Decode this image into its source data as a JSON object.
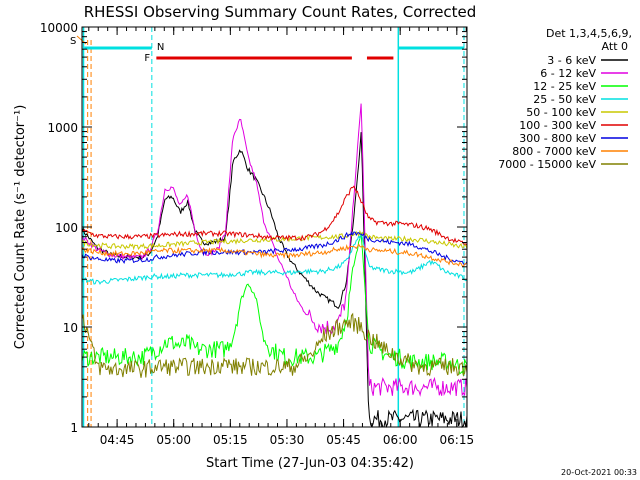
{
  "chart_data": {
    "type": "line",
    "title": "RHESSI Observing Summary Count Rates, Corrected",
    "xlabel": "Start Time (27-Jun-03 04:35:42)",
    "ylabel": "Corrected Count Rate (s⁻¹ detector⁻¹)",
    "y_scale": "log",
    "ylim": [
      1,
      10000
    ],
    "x_unit": "minutes after 04:35:42",
    "xlim": [
      0,
      102
    ],
    "x_ticks": [
      {
        "label": "04:45",
        "x": 9.3
      },
      {
        "label": "05:00",
        "x": 24.3
      },
      {
        "label": "05:15",
        "x": 39.3
      },
      {
        "label": "05:30",
        "x": 54.3
      },
      {
        "label": "05:45",
        "x": 69.3
      },
      {
        "label": "06:00",
        "x": 84.3
      },
      {
        "label": "06:15",
        "x": 99.3
      }
    ],
    "y_ticks": [
      {
        "label": "1",
        "y": 1
      },
      {
        "label": "10",
        "y": 10
      },
      {
        "label": "100",
        "y": 100
      },
      {
        "label": "1000",
        "y": 1000
      },
      {
        "label": "10000",
        "y": 10000
      }
    ],
    "legend_title": "Det 1,3,4,5,6,9,",
    "legend_subtitle": "Att 0",
    "legend_position": "right",
    "series": [
      {
        "name": "3 - 6 keV",
        "color": "#000000",
        "x": [
          0,
          4,
          8,
          12,
          16,
          18,
          20,
          22,
          24,
          26,
          28,
          30,
          32,
          34,
          36,
          38,
          40,
          42,
          44,
          46,
          48,
          50,
          52,
          54,
          56,
          58,
          60,
          62,
          64,
          66,
          68,
          70,
          72,
          74,
          76,
          78,
          80,
          82,
          84,
          86,
          88,
          90,
          92,
          94,
          96,
          98,
          100,
          102
        ],
        "values": [
          95,
          62,
          52,
          50,
          50,
          55,
          80,
          190,
          200,
          140,
          180,
          90,
          70,
          70,
          72,
          78,
          450,
          600,
          380,
          300,
          210,
          140,
          80,
          55,
          42,
          34,
          28,
          23,
          20,
          18,
          16,
          28,
          120,
          900,
          1.2,
          1.2,
          1.2,
          1.2,
          1.2,
          1.2,
          1.2,
          1.2,
          1.2,
          1.2,
          1.2,
          1.2,
          1.2,
          1.2
        ]
      },
      {
        "name": "6 - 12 keV",
        "color": "#e000e0",
        "x": [
          0,
          4,
          8,
          12,
          16,
          18,
          20,
          22,
          24,
          26,
          28,
          30,
          32,
          34,
          36,
          38,
          40,
          42,
          44,
          46,
          48,
          50,
          52,
          54,
          56,
          58,
          60,
          62,
          64,
          66,
          68,
          70,
          72,
          74,
          76,
          78,
          80,
          82,
          84,
          86,
          88,
          90,
          92,
          94,
          96,
          98,
          100,
          102
        ],
        "values": [
          80,
          60,
          52,
          50,
          50,
          60,
          90,
          240,
          250,
          160,
          210,
          90,
          55,
          55,
          60,
          90,
          800,
          1200,
          500,
          300,
          120,
          75,
          48,
          34,
          22,
          16,
          13,
          11,
          10,
          10,
          11,
          20,
          200,
          1800,
          2.5,
          2.5,
          2.5,
          2.5,
          2.5,
          2.5,
          2.5,
          2.5,
          2.5,
          2.5,
          2.5,
          2.5,
          2.5,
          2.5
        ]
      },
      {
        "name": "12 - 25 keV",
        "color": "#00ff00",
        "x": [
          0,
          4,
          8,
          12,
          16,
          18,
          20,
          22,
          24,
          26,
          28,
          30,
          32,
          34,
          36,
          38,
          40,
          42,
          44,
          46,
          48,
          50,
          52,
          54,
          56,
          58,
          60,
          62,
          64,
          66,
          68,
          70,
          72,
          74,
          76,
          78,
          80,
          82,
          84,
          86,
          88,
          90,
          92,
          94,
          96,
          98,
          100,
          102
        ],
        "values": [
          5,
          5,
          5,
          5,
          5,
          5.5,
          6,
          7,
          7,
          6.5,
          7,
          6,
          6,
          6,
          6,
          6,
          8,
          18,
          28,
          20,
          8,
          6,
          5.5,
          5,
          5,
          5,
          5,
          5,
          5.5,
          6,
          7,
          12,
          40,
          90,
          7,
          6,
          5.5,
          5,
          5,
          4.5,
          4.5,
          4.5,
          4.5,
          4.5,
          4.5,
          4.5,
          4,
          4
        ]
      },
      {
        "name": "25 - 50 keV",
        "color": "#00e0e0",
        "x": [
          0,
          4,
          8,
          12,
          16,
          18,
          20,
          22,
          24,
          26,
          28,
          30,
          32,
          34,
          36,
          38,
          40,
          42,
          44,
          46,
          48,
          50,
          52,
          54,
          56,
          58,
          60,
          62,
          64,
          66,
          68,
          70,
          72,
          74,
          76,
          78,
          80,
          82,
          84,
          86,
          88,
          90,
          92,
          94,
          96,
          98,
          100,
          102
        ],
        "values": [
          30,
          28,
          29,
          30,
          31,
          32,
          32,
          32,
          32,
          33,
          33,
          33,
          33,
          33,
          33,
          33,
          34,
          34,
          35,
          35,
          35,
          35,
          35,
          35,
          35,
          36,
          36,
          36,
          36,
          38,
          40,
          45,
          65,
          85,
          40,
          38,
          37,
          36,
          36,
          35,
          36,
          40,
          45,
          42,
          36,
          34,
          32,
          30
        ]
      },
      {
        "name": "50 - 100 keV",
        "color": "#c8c800",
        "x": [
          0,
          4,
          8,
          12,
          16,
          18,
          20,
          22,
          24,
          26,
          28,
          30,
          32,
          34,
          36,
          38,
          40,
          42,
          44,
          46,
          48,
          50,
          52,
          54,
          56,
          58,
          60,
          62,
          64,
          66,
          68,
          70,
          72,
          74,
          76,
          78,
          80,
          82,
          84,
          86,
          88,
          90,
          92,
          94,
          96,
          98,
          100,
          102
        ],
        "values": [
          70,
          66,
          64,
          64,
          64,
          65,
          65,
          66,
          67,
          68,
          68,
          70,
          70,
          71,
          71,
          72,
          72,
          73,
          74,
          74,
          75,
          75,
          75,
          76,
          76,
          77,
          78,
          78,
          79,
          80,
          80,
          82,
          85,
          88,
          80,
          78,
          76,
          76,
          76,
          76,
          75,
          74,
          72,
          70,
          68,
          66,
          64,
          63
        ]
      },
      {
        "name": "100 - 300 keV",
        "color": "#e00000",
        "x": [
          0,
          4,
          8,
          12,
          16,
          18,
          20,
          22,
          24,
          26,
          28,
          30,
          32,
          34,
          36,
          38,
          40,
          42,
          44,
          46,
          48,
          50,
          52,
          54,
          56,
          58,
          60,
          62,
          64,
          66,
          68,
          70,
          72,
          74,
          76,
          78,
          80,
          82,
          84,
          86,
          88,
          90,
          92,
          94,
          96,
          98,
          100,
          102
        ],
        "values": [
          92,
          82,
          80,
          80,
          80,
          81,
          82,
          83,
          84,
          85,
          85,
          86,
          86,
          86,
          86,
          86,
          85,
          84,
          83,
          82,
          80,
          79,
          78,
          78,
          78,
          78,
          80,
          84,
          92,
          110,
          140,
          200,
          260,
          180,
          120,
          112,
          110,
          108,
          108,
          106,
          104,
          100,
          96,
          88,
          80,
          75,
          70,
          68
        ]
      },
      {
        "name": "300 - 800 keV",
        "color": "#0000e0",
        "x": [
          0,
          4,
          8,
          12,
          16,
          18,
          20,
          22,
          24,
          26,
          28,
          30,
          32,
          34,
          36,
          38,
          40,
          42,
          44,
          46,
          48,
          50,
          52,
          54,
          56,
          58,
          60,
          62,
          64,
          66,
          68,
          70,
          72,
          74,
          76,
          78,
          80,
          82,
          84,
          86,
          88,
          90,
          92,
          94,
          96,
          98,
          100,
          102
        ],
        "values": [
          52,
          48,
          46,
          46,
          47,
          48,
          50,
          51,
          52,
          53,
          54,
          55,
          56,
          56,
          56,
          56,
          56,
          56,
          56,
          56,
          56,
          57,
          58,
          58,
          60,
          60,
          62,
          64,
          66,
          70,
          75,
          82,
          88,
          84,
          76,
          74,
          72,
          70,
          70,
          68,
          66,
          62,
          58,
          54,
          50,
          47,
          45,
          44
        ]
      },
      {
        "name": "800 - 7000 keV",
        "color": "#ff8000",
        "x": [
          0,
          4,
          8,
          12,
          16,
          18,
          20,
          22,
          24,
          26,
          28,
          30,
          32,
          34,
          36,
          38,
          40,
          42,
          44,
          46,
          48,
          50,
          52,
          54,
          56,
          58,
          60,
          62,
          64,
          66,
          68,
          70,
          72,
          74,
          76,
          78,
          80,
          82,
          84,
          86,
          88,
          90,
          92,
          94,
          96,
          98,
          100,
          102
        ],
        "values": [
          60,
          56,
          54,
          54,
          55,
          56,
          57,
          58,
          58,
          58,
          58,
          58,
          58,
          58,
          58,
          58,
          57,
          56,
          55,
          54,
          53,
          52,
          52,
          52,
          52,
          53,
          54,
          55,
          56,
          58,
          60,
          62,
          64,
          64,
          60,
          58,
          58,
          57,
          56,
          55,
          54,
          52,
          50,
          48,
          46,
          44,
          43,
          42
        ]
      },
      {
        "name": "7000 - 15000 keV",
        "color": "#808000",
        "x": [
          0,
          4,
          8,
          12,
          16,
          18,
          20,
          22,
          24,
          26,
          28,
          30,
          32,
          34,
          36,
          38,
          40,
          42,
          44,
          46,
          48,
          50,
          52,
          54,
          56,
          58,
          60,
          62,
          64,
          66,
          68,
          70,
          72,
          74,
          76,
          78,
          80,
          82,
          84,
          86,
          88,
          90,
          92,
          94,
          96,
          98,
          100,
          102
        ],
        "values": [
          14,
          4,
          3.8,
          3.8,
          3.8,
          3.9,
          4,
          4,
          4,
          4,
          4,
          4,
          4,
          4,
          4.2,
          4.3,
          4,
          4,
          4,
          4,
          4,
          4,
          4,
          4,
          4,
          4.5,
          5,
          6,
          8,
          9,
          10,
          11,
          11,
          10,
          8,
          7,
          6,
          5.5,
          5,
          4.5,
          4.2,
          4,
          4,
          4,
          4,
          4,
          4,
          4
        ]
      }
    ],
    "annotations": [
      {
        "label": "S",
        "color": "#ff8000"
      },
      {
        "label": "N",
        "color": "#00e0e0"
      },
      {
        "label": "F",
        "color": "#e00000"
      }
    ],
    "footer_date": "20-Oct-2021 00:33"
  }
}
